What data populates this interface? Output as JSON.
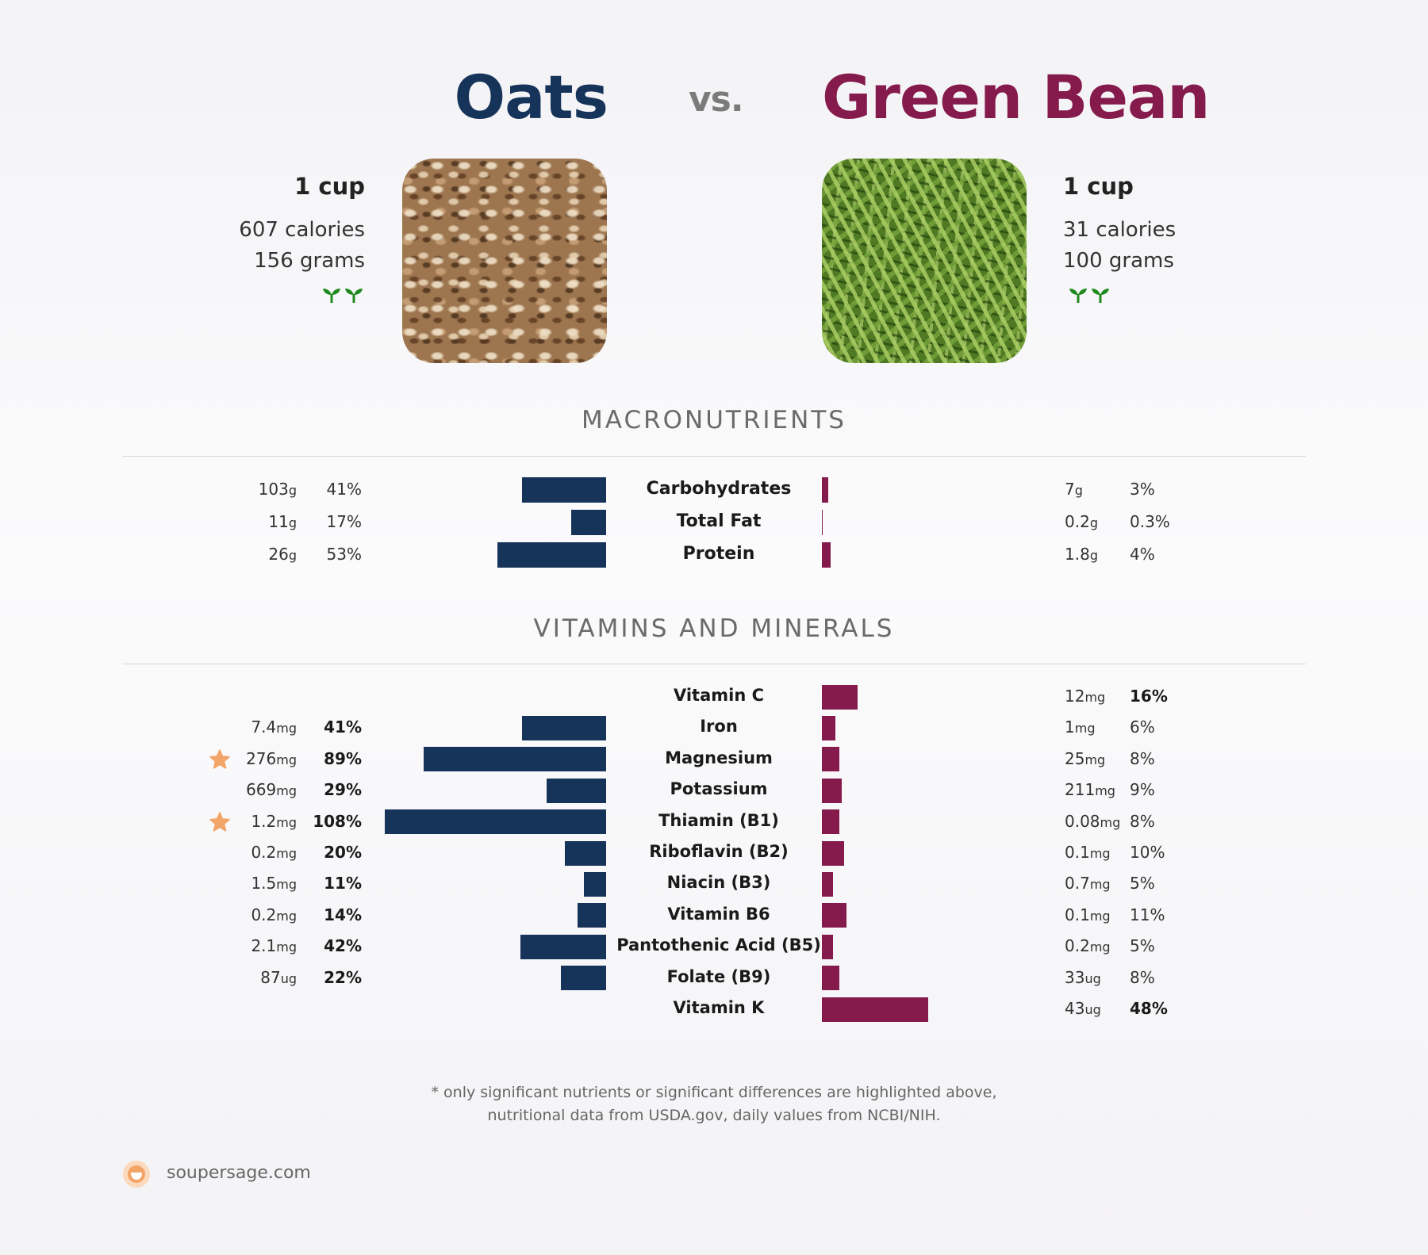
{
  "header": {
    "left_title": "Oats",
    "vs_label": "vs.",
    "right_title": "Green Bean"
  },
  "left_food": {
    "serving": "1 cup",
    "calories": "607 calories",
    "grams": "156 grams",
    "image_icon": "oats-photo",
    "badge_icon": "sprouts-icon"
  },
  "right_food": {
    "serving": "1 cup",
    "calories": "31 calories",
    "grams": "100 grams",
    "image_icon": "green-bean-photo",
    "badge_icon": "sprouts-icon"
  },
  "sections": {
    "macro_title": "MACRONUTRIENTS",
    "vitamins_title": "VITAMINS AND MINERALS"
  },
  "colors": {
    "left": "#16335a",
    "right": "#851a4c",
    "star": "#f3a468",
    "sprout": "#1e8a1e"
  },
  "chart_data": [
    {
      "type": "bar",
      "section": "MACRONUTRIENTS",
      "categories": [
        "Carbohydrates",
        "Total Fat",
        "Protein"
      ],
      "series": [
        {
          "name": "Oats",
          "values": [
            41,
            17,
            53
          ],
          "amounts": [
            "103",
            "11",
            "26"
          ],
          "units": [
            "g",
            "g",
            "g"
          ],
          "percent_labels": [
            "41%",
            "17%",
            "53%"
          ],
          "bold": [
            false,
            false,
            false
          ],
          "stars": [
            false,
            false,
            false
          ]
        },
        {
          "name": "Green Bean",
          "values": [
            3,
            0.3,
            4
          ],
          "amounts": [
            "7",
            "0.2",
            "1.8"
          ],
          "units": [
            "g",
            "g",
            "g"
          ],
          "percent_labels": [
            "3%",
            "0.3%",
            "4%"
          ],
          "bold": [
            false,
            false,
            false
          ]
        }
      ]
    },
    {
      "type": "bar",
      "section": "VITAMINS AND MINERALS",
      "categories": [
        "Vitamin C",
        "Iron",
        "Magnesium",
        "Potassium",
        "Thiamin (B1)",
        "Riboflavin (B2)",
        "Niacin (B3)",
        "Vitamin B6",
        "Pantothenic Acid (B5)",
        "Folate (B9)",
        "Vitamin K"
      ],
      "series": [
        {
          "name": "Oats",
          "values": [
            null,
            41,
            89,
            29,
            108,
            20,
            11,
            14,
            42,
            22,
            null
          ],
          "amounts": [
            "",
            "7.4",
            "276",
            "669",
            "1.2",
            "0.2",
            "1.5",
            "0.2",
            "2.1",
            "87",
            ""
          ],
          "units": [
            "",
            "mg",
            "mg",
            "mg",
            "mg",
            "mg",
            "mg",
            "mg",
            "mg",
            "ug",
            ""
          ],
          "percent_labels": [
            "",
            "41%",
            "89%",
            "29%",
            "108%",
            "20%",
            "11%",
            "14%",
            "42%",
            "22%",
            ""
          ],
          "bold": [
            false,
            true,
            true,
            true,
            true,
            true,
            true,
            true,
            true,
            true,
            false
          ],
          "stars": [
            false,
            false,
            true,
            false,
            true,
            false,
            false,
            false,
            false,
            false,
            false
          ]
        },
        {
          "name": "Green Bean",
          "values": [
            16,
            6,
            8,
            9,
            8,
            10,
            5,
            11,
            5,
            8,
            48
          ],
          "amounts": [
            "12",
            "1",
            "25",
            "211",
            "0.08",
            "0.1",
            "0.7",
            "0.1",
            "0.2",
            "33",
            "43"
          ],
          "units": [
            "mg",
            "mg",
            "mg",
            "mg",
            "mg",
            "mg",
            "mg",
            "mg",
            "mg",
            "ug",
            "ug"
          ],
          "percent_labels": [
            "16%",
            "6%",
            "8%",
            "9%",
            "8%",
            "10%",
            "5%",
            "11%",
            "5%",
            "8%",
            "48%"
          ],
          "bold": [
            true,
            false,
            false,
            false,
            false,
            false,
            false,
            false,
            false,
            false,
            true
          ]
        }
      ]
    }
  ],
  "footnote": {
    "line1": "* only significant nutrients or significant differences are highlighted above,",
    "line2": "nutritional data from USDA.gov, daily values from NCBI/NIH."
  },
  "brand": {
    "text": "soupersage.com",
    "icon": "soupersage-logo-icon"
  }
}
